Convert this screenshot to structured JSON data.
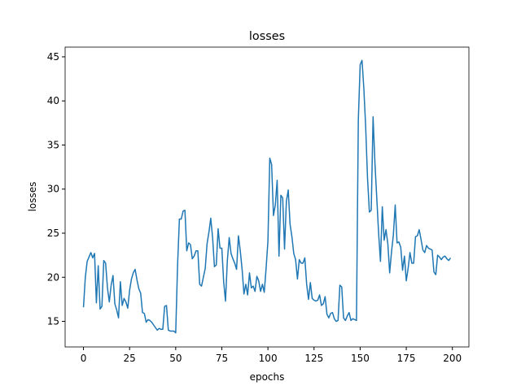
{
  "chart_data": {
    "type": "line",
    "title": "losses",
    "xlabel": "epochs",
    "ylabel": "losses",
    "x": [
      0,
      1,
      2,
      3,
      4,
      5,
      6,
      7,
      8,
      9,
      10,
      11,
      12,
      13,
      14,
      15,
      16,
      17,
      18,
      19,
      20,
      21,
      22,
      23,
      24,
      25,
      26,
      27,
      28,
      29,
      30,
      31,
      32,
      33,
      34,
      35,
      36,
      37,
      38,
      39,
      40,
      41,
      42,
      43,
      44,
      45,
      46,
      47,
      48,
      49,
      50,
      51,
      52,
      53,
      54,
      55,
      56,
      57,
      58,
      59,
      60,
      61,
      62,
      63,
      64,
      65,
      66,
      67,
      68,
      69,
      70,
      71,
      72,
      73,
      74,
      75,
      76,
      77,
      78,
      79,
      80,
      81,
      82,
      83,
      84,
      85,
      86,
      87,
      88,
      89,
      90,
      91,
      92,
      93,
      94,
      95,
      96,
      97,
      98,
      99,
      100,
      101,
      102,
      103,
      104,
      105,
      106,
      107,
      108,
      109,
      110,
      111,
      112,
      113,
      114,
      115,
      116,
      117,
      118,
      119,
      120,
      121,
      122,
      123,
      124,
      125,
      126,
      127,
      128,
      129,
      130,
      131,
      132,
      133,
      134,
      135,
      136,
      137,
      138,
      139,
      140,
      141,
      142,
      143,
      144,
      145,
      146,
      147,
      148,
      149,
      150,
      151,
      152,
      153,
      154,
      155,
      156,
      157,
      158,
      159,
      160,
      161,
      162,
      163,
      164,
      165,
      166,
      167,
      168,
      169,
      170,
      171,
      172,
      173,
      174,
      175,
      176,
      177,
      178,
      179,
      180,
      181,
      182,
      183,
      184,
      185,
      186,
      187,
      188,
      189,
      190,
      191,
      192,
      193,
      194,
      195,
      196,
      197,
      198,
      199
    ],
    "series": [
      {
        "name": "losses",
        "color": "#1f77b4",
        "values": [
          16.6,
          20,
          21.8,
          22.3,
          22.8,
          22.2,
          22.7,
          17.1,
          21.3,
          16.4,
          16.7,
          21.9,
          21.6,
          18.8,
          17.2,
          19.1,
          20.2,
          17,
          16.3,
          15.4,
          19.5,
          16.8,
          17.6,
          17.2,
          16.5,
          18.5,
          19.8,
          20.5,
          20.9,
          19.7,
          18.7,
          18.2,
          16,
          15.9,
          14.9,
          15.2,
          15.1,
          14.9,
          14.6,
          14.3,
          14,
          14.2,
          14.1,
          14.1,
          16.7,
          16.8,
          14,
          13.9,
          13.9,
          13.9,
          13.7,
          21.3,
          26.6,
          26.6,
          27.5,
          27.6,
          23,
          23.9,
          23.7,
          22.1,
          22.4,
          23,
          23,
          19.2,
          19,
          20,
          21,
          23.8,
          25.1,
          26.7,
          24.5,
          21.2,
          21.4,
          25.5,
          23.3,
          23.3,
          19.5,
          17.3,
          21.9,
          24.5,
          22.7,
          22.1,
          21.6,
          20.9,
          24.7,
          23,
          20.9,
          18.1,
          19.2,
          18,
          20.5,
          18.8,
          19,
          18.4,
          20.1,
          19.6,
          18.4,
          19.2,
          18.3,
          21,
          24.1,
          33.5,
          32.8,
          27,
          28.2,
          31,
          22.4,
          29.3,
          29,
          23.2,
          28.6,
          29.9,
          26,
          24.6,
          22.7,
          22,
          19.8,
          22,
          21.6,
          21.6,
          22.2,
          19.2,
          17.5,
          19.4,
          17.6,
          17.4,
          17.3,
          17.4,
          18,
          16.8,
          17,
          17.8,
          15.8,
          15.4,
          15.9,
          16,
          15.3,
          15,
          15.1,
          19.1,
          18.9,
          15.4,
          15.1,
          15.6,
          16,
          15.1,
          15.3,
          15.2,
          15.1,
          37.8,
          44.1,
          44.6,
          41.4,
          37,
          31.2,
          27.4,
          27.6,
          38.2,
          33,
          29,
          25,
          21.8,
          28,
          24.2,
          25.4,
          23.8,
          20.5,
          22.9,
          24.8,
          28.2,
          23.9,
          24,
          23.4,
          20.8,
          22.4,
          19.6,
          21,
          22.8,
          21.6,
          21.6,
          24.6,
          24.7,
          25.4,
          24.3,
          23.1,
          22.8,
          23.6,
          23.3,
          23.2,
          23.1,
          20.6,
          20.3,
          22.5,
          22.3,
          22,
          22.3,
          22.4,
          22.1,
          21.9,
          22.2
        ]
      }
    ],
    "xlim": [
      -9.95,
      208.95
    ],
    "ylim": [
      12.1,
      46.1
    ],
    "xticks": [
      0,
      25,
      50,
      75,
      100,
      125,
      150,
      175,
      200
    ],
    "yticks": [
      15,
      20,
      25,
      30,
      35,
      40,
      45
    ]
  }
}
